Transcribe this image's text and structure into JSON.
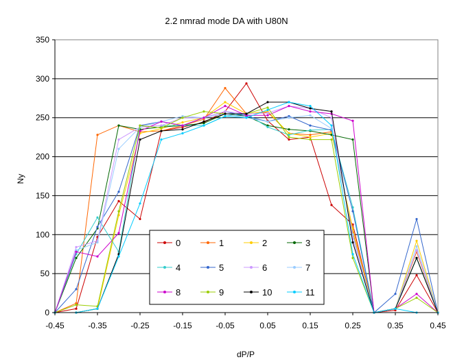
{
  "chart_data": {
    "type": "line",
    "title": "2.2 nmrad mode DA with U80N",
    "xlabel": "dP/P",
    "ylabel": "Ny",
    "xlim": [
      -0.45,
      0.45
    ],
    "ylim": [
      0,
      350
    ],
    "x_ticks": [
      -0.45,
      -0.35,
      -0.25,
      -0.15,
      -0.05,
      0.05,
      0.15,
      0.25,
      0.35,
      0.45
    ],
    "x_tick_labels": [
      "-0.45",
      "-0.35",
      "-0.25",
      "-0.15",
      "-0.05",
      "0.05",
      "0.15",
      "0.25",
      "0.35",
      "0.45"
    ],
    "y_ticks": [
      0,
      50,
      100,
      150,
      200,
      250,
      300,
      350
    ],
    "y_tick_labels": [
      "0",
      "50",
      "100",
      "150",
      "200",
      "250",
      "300",
      "350"
    ],
    "grid": "horizontal",
    "legend_position": "bottom-center",
    "x": [
      -0.45,
      -0.4,
      -0.35,
      -0.3,
      -0.25,
      -0.2,
      -0.15,
      -0.1,
      -0.05,
      0.0,
      0.05,
      0.1,
      0.15,
      0.2,
      0.25,
      0.3,
      0.35,
      0.4,
      0.45
    ],
    "series": [
      {
        "name": "0",
        "color": "#cc0000",
        "marker": "circle",
        "values": [
          0,
          5,
          97,
          143,
          120,
          233,
          238,
          244,
          258,
          294,
          246,
          222,
          225,
          138,
          113,
          0,
          3,
          48,
          0
        ]
      },
      {
        "name": "1",
        "color": "#ff6600",
        "marker": "circle",
        "values": [
          0,
          12,
          228,
          240,
          232,
          233,
          240,
          248,
          288,
          255,
          257,
          230,
          228,
          232,
          103,
          0,
          5,
          78,
          0
        ]
      },
      {
        "name": "2",
        "color": "#ffcc00",
        "marker": "circle",
        "values": [
          0,
          0,
          5,
          125,
          230,
          236,
          244,
          250,
          270,
          255,
          258,
          230,
          225,
          230,
          108,
          0,
          5,
          92,
          0
        ]
      },
      {
        "name": "3",
        "color": "#006600",
        "marker": "circle",
        "values": [
          0,
          70,
          108,
          240,
          235,
          238,
          240,
          243,
          255,
          252,
          240,
          235,
          233,
          228,
          222,
          0,
          5,
          70,
          0
        ]
      },
      {
        "name": "4",
        "color": "#33cccc",
        "marker": "circle",
        "values": [
          0,
          75,
          122,
          78,
          238,
          240,
          240,
          240,
          252,
          255,
          238,
          228,
          234,
          235,
          135,
          0,
          5,
          70,
          0
        ]
      },
      {
        "name": "5",
        "color": "#3366cc",
        "marker": "circle",
        "values": [
          0,
          30,
          110,
          155,
          240,
          245,
          240,
          250,
          258,
          252,
          245,
          252,
          240,
          234,
          130,
          0,
          24,
          120,
          0
        ]
      },
      {
        "name": "6",
        "color": "#cc99ff",
        "marker": "circle",
        "values": [
          0,
          84,
          92,
          222,
          238,
          240,
          250,
          250,
          258,
          255,
          256,
          265,
          262,
          250,
          95,
          0,
          5,
          80,
          0
        ]
      },
      {
        "name": "7",
        "color": "#99ccff",
        "marker": "circle",
        "values": [
          0,
          80,
          90,
          210,
          238,
          245,
          252,
          250,
          255,
          250,
          245,
          250,
          253,
          236,
          100,
          0,
          5,
          85,
          0
        ]
      },
      {
        "name": "8",
        "color": "#cc00cc",
        "marker": "circle",
        "values": [
          0,
          78,
          72,
          102,
          233,
          245,
          240,
          250,
          265,
          253,
          253,
          265,
          258,
          255,
          246,
          0,
          5,
          24,
          0
        ]
      },
      {
        "name": "9",
        "color": "#99cc00",
        "marker": "circle",
        "values": [
          0,
          10,
          8,
          130,
          240,
          237,
          250,
          258,
          255,
          255,
          263,
          225,
          222,
          222,
          70,
          0,
          5,
          19,
          0
        ]
      },
      {
        "name": "10",
        "color": "#000000",
        "marker": "circle",
        "values": [
          0,
          0,
          5,
          75,
          222,
          233,
          235,
          245,
          255,
          255,
          270,
          270,
          262,
          258,
          90,
          0,
          5,
          70,
          0
        ]
      },
      {
        "name": "11",
        "color": "#00ccff",
        "marker": "circle",
        "values": [
          0,
          0,
          5,
          72,
          140,
          222,
          230,
          240,
          252,
          250,
          260,
          270,
          265,
          240,
          75,
          0,
          5,
          0,
          0
        ]
      }
    ]
  }
}
